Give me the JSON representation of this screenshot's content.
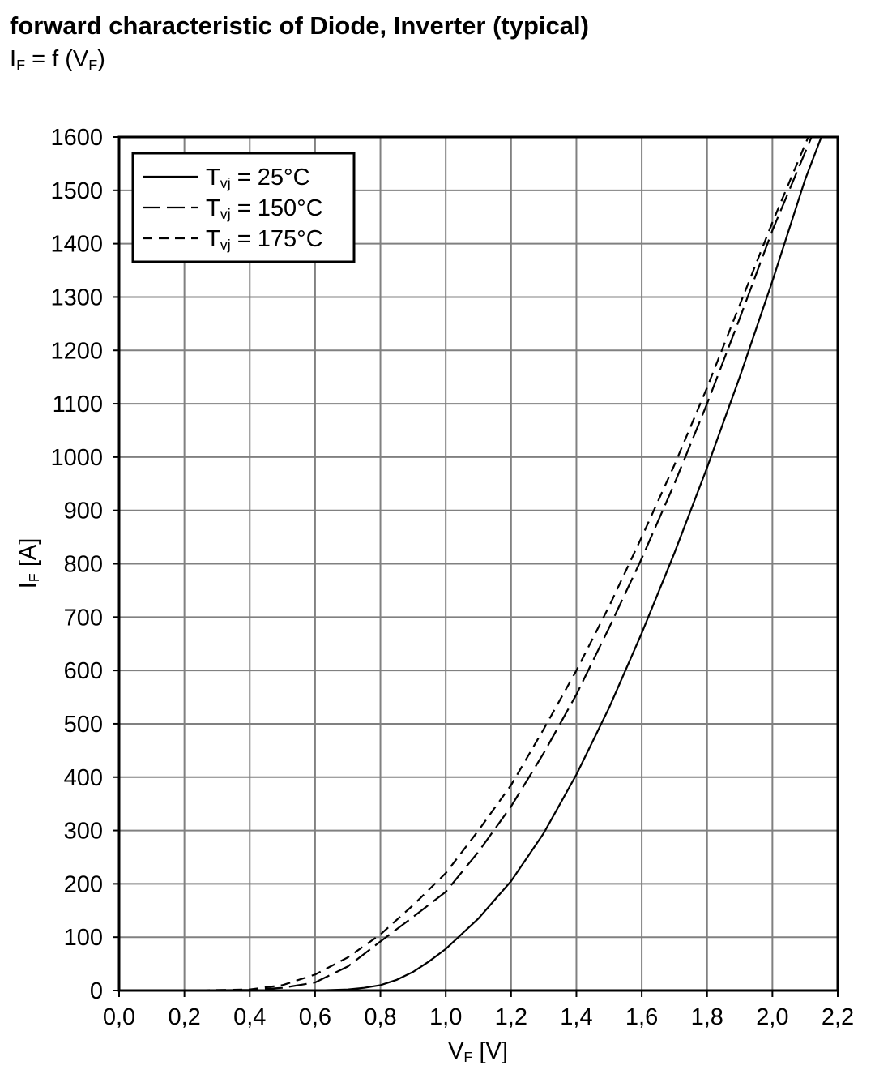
{
  "chart_data": {
    "type": "line",
    "title": "forward characteristic of Diode, Inverter (typical)",
    "subtitle": "IF = f (VF)",
    "x_label": "VF [V]",
    "y_label": "IF [A]",
    "xlim": [
      0,
      2.2
    ],
    "ylim": [
      0,
      1600
    ],
    "xticks": [
      {
        "value": 0,
        "label": "0,0"
      },
      {
        "value": 0.2,
        "label": "0,2"
      },
      {
        "value": 0.4,
        "label": "0,4"
      },
      {
        "value": 0.6,
        "label": "0,6"
      },
      {
        "value": 0.8,
        "label": "0,8"
      },
      {
        "value": 1.0,
        "label": "1,0"
      },
      {
        "value": 1.2,
        "label": "1,2"
      },
      {
        "value": 1.4,
        "label": "1,4"
      },
      {
        "value": 1.6,
        "label": "1,6"
      },
      {
        "value": 1.8,
        "label": "1,8"
      },
      {
        "value": 2.0,
        "label": "2,0"
      },
      {
        "value": 2.2,
        "label": "2,2"
      }
    ],
    "yticks": [
      0,
      100,
      200,
      300,
      400,
      500,
      600,
      700,
      800,
      900,
      1000,
      1100,
      1200,
      1300,
      1400,
      1500,
      1600
    ],
    "grid": true,
    "legend": "upper left",
    "series": [
      {
        "name": "Tvj = 25°C",
        "color": "#000000",
        "dash": "solid",
        "x": [
          0,
          0.2,
          0.4,
          0.6,
          0.7,
          0.75,
          0.8,
          0.85,
          0.9,
          0.95,
          1.0,
          1.1,
          1.2,
          1.3,
          1.4,
          1.5,
          1.6,
          1.7,
          1.8,
          1.9,
          2.0,
          2.1,
          2.15
        ],
        "values": [
          0,
          0,
          0,
          0,
          2,
          5,
          10,
          20,
          35,
          55,
          78,
          135,
          205,
          295,
          405,
          530,
          670,
          820,
          980,
          1150,
          1330,
          1520,
          1600
        ]
      },
      {
        "name": "Tvj = 150°C",
        "color": "#000000",
        "dash": "long",
        "x": [
          0,
          0.2,
          0.4,
          0.5,
          0.6,
          0.7,
          0.8,
          0.9,
          1.0,
          1.1,
          1.2,
          1.3,
          1.4,
          1.5,
          1.6,
          1.7,
          1.8,
          1.9,
          2.0,
          2.12
        ],
        "values": [
          0,
          0,
          1,
          5,
          15,
          45,
          92,
          138,
          185,
          260,
          345,
          445,
          555,
          680,
          810,
          950,
          1100,
          1260,
          1425,
          1600
        ]
      },
      {
        "name": "Tvj = 175°C",
        "color": "#000000",
        "dash": "short",
        "x": [
          0,
          0.2,
          0.4,
          0.5,
          0.6,
          0.7,
          0.8,
          0.9,
          1.0,
          1.1,
          1.2,
          1.3,
          1.4,
          1.5,
          1.6,
          1.7,
          1.8,
          1.9,
          2.0,
          2.11
        ],
        "values": [
          0,
          0,
          2,
          10,
          30,
          62,
          105,
          160,
          220,
          300,
          385,
          490,
          600,
          720,
          850,
          985,
          1130,
          1285,
          1440,
          1600
        ]
      }
    ]
  }
}
